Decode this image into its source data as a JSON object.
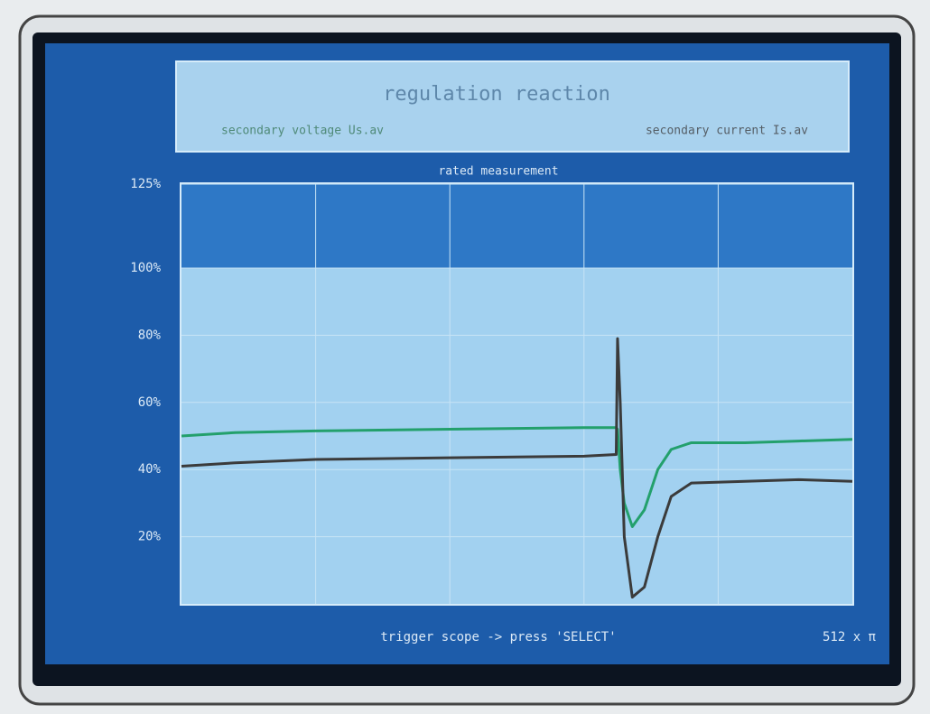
{
  "chart_data": {
    "type": "line",
    "title": "regulation reaction",
    "subtitle": "rated measurement",
    "footer": "trigger scope -> press 'SELECT'",
    "time_scale": "512 x π",
    "x": [
      0,
      0.4,
      1,
      2,
      3,
      3.24,
      3.25,
      3.27,
      3.3,
      3.36,
      3.45,
      3.55,
      3.65,
      3.8,
      4.2,
      4.6,
      5
    ],
    "series": [
      {
        "name": "secondary voltage Us.av",
        "color": "#23a06c",
        "values": [
          50,
          51,
          51.5,
          52,
          52.5,
          52.5,
          52,
          40,
          30,
          23,
          28,
          40,
          46,
          48,
          48,
          48.5,
          49
        ]
      },
      {
        "name": "secondary current Is.av",
        "color": "#3b3b3b",
        "values": [
          41,
          42,
          43,
          43.5,
          44,
          44.5,
          79,
          60,
          20,
          2,
          5,
          20,
          32,
          36,
          36.5,
          37,
          36.5
        ]
      }
    ],
    "rated_band": [
      100,
      125
    ],
    "xlim": [
      0,
      5
    ],
    "xticks": [
      1,
      2,
      3,
      4
    ],
    "ylim": [
      0,
      125
    ],
    "yticks": [
      {
        "value": 20,
        "label": "20%"
      },
      {
        "value": 40,
        "label": "40%"
      },
      {
        "value": 60,
        "label": "60%"
      },
      {
        "value": 80,
        "label": "80%"
      },
      {
        "value": 100,
        "label": "100%"
      },
      {
        "value": 125,
        "label": "125%"
      }
    ],
    "grid": true
  }
}
